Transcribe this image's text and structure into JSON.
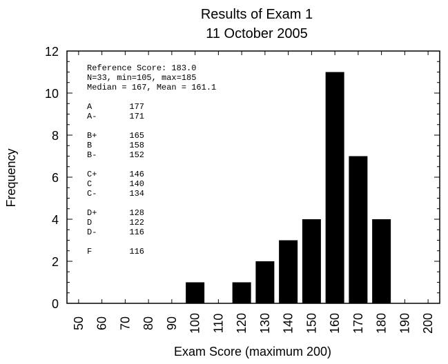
{
  "chart_data": {
    "type": "bar",
    "title": "Results of Exam 1",
    "subtitle": "11 October 2005",
    "xlabel": "Exam Score (maximum 200)",
    "ylabel": "Frequency",
    "xlim": [
      45,
      205
    ],
    "ylim": [
      0,
      12
    ],
    "x_ticks": [
      50,
      60,
      70,
      80,
      90,
      100,
      110,
      120,
      130,
      140,
      150,
      160,
      170,
      180,
      190,
      200
    ],
    "y_ticks": [
      0,
      2,
      4,
      6,
      8,
      10,
      12
    ],
    "bin_width": 10,
    "bars": [
      {
        "x": 100,
        "value": 1
      },
      {
        "x": 120,
        "value": 1
      },
      {
        "x": 130,
        "value": 2
      },
      {
        "x": 140,
        "value": 3
      },
      {
        "x": 150,
        "value": 4
      },
      {
        "x": 160,
        "value": 11
      },
      {
        "x": 170,
        "value": 7
      },
      {
        "x": 180,
        "value": 4
      }
    ],
    "grid": false,
    "annotations": {
      "stats": [
        "Reference Score: 183.0",
        "N=33, min=105, max=185",
        "Median = 167, Mean = 161.1"
      ],
      "grades": [
        {
          "grade": "A",
          "score": "177"
        },
        {
          "grade": "A-",
          "score": "171"
        },
        {
          "grade": "B+",
          "score": "165"
        },
        {
          "grade": "B",
          "score": "158"
        },
        {
          "grade": "B-",
          "score": "152"
        },
        {
          "grade": "C+",
          "score": "146"
        },
        {
          "grade": "C",
          "score": "140"
        },
        {
          "grade": "C-",
          "score": "134"
        },
        {
          "grade": "D+",
          "score": "128"
        },
        {
          "grade": "D",
          "score": "122"
        },
        {
          "grade": "D-",
          "score": "116"
        },
        {
          "grade": "F",
          "score": "116"
        }
      ]
    },
    "colors": {
      "bar": "#000000",
      "axis": "#000000",
      "background": "#ffffff"
    }
  }
}
